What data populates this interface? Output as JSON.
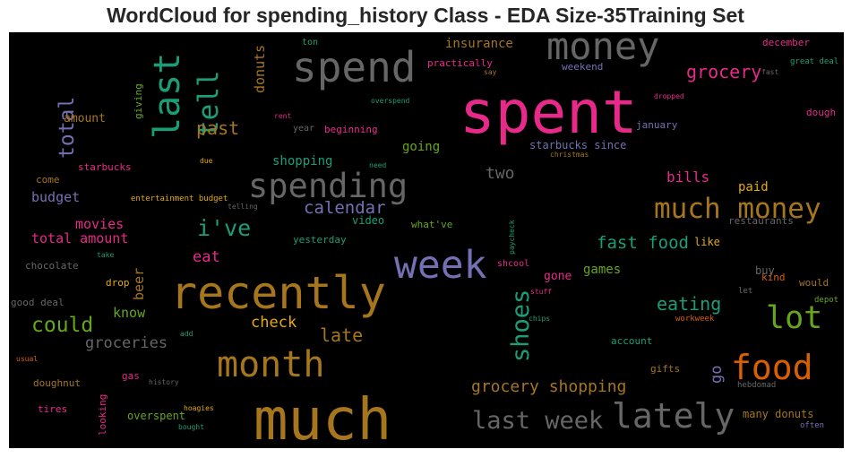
{
  "chart_data": {
    "type": "wordcloud",
    "title": "WordCloud for spending_history Class - EDA Size-35Training Set",
    "background": "#000000",
    "words": [
      {
        "text": "spent",
        "size": 66,
        "color": "#e7298a"
      },
      {
        "text": "much",
        "size": 64,
        "color": "#a6761d"
      },
      {
        "text": "recently",
        "size": 50,
        "color": "#a6761d"
      },
      {
        "text": "spend",
        "size": 46,
        "color": "#666666"
      },
      {
        "text": "week",
        "size": 43,
        "color": "#7570b3"
      },
      {
        "text": "money",
        "size": 42,
        "color": "#666666"
      },
      {
        "text": "last",
        "size": 40,
        "color": "#1b9e77"
      },
      {
        "text": "month",
        "size": 40,
        "color": "#a6761d"
      },
      {
        "text": "lately",
        "size": 38,
        "color": "#666666"
      },
      {
        "text": "food",
        "size": 38,
        "color": "#d95f02"
      },
      {
        "text": "spending",
        "size": 37,
        "color": "#666666"
      },
      {
        "text": "lot",
        "size": 35,
        "color": "#66a61e"
      },
      {
        "text": "much money",
        "size": 31,
        "color": "#a6761d"
      },
      {
        "text": "tell",
        "size": 31,
        "color": "#1b9e77"
      },
      {
        "text": "shoes",
        "size": 27,
        "color": "#1b9e77"
      },
      {
        "text": "last week",
        "size": 27,
        "color": "#666666"
      },
      {
        "text": "i've",
        "size": 25,
        "color": "#1b9e77"
      },
      {
        "text": "could",
        "size": 23,
        "color": "#66a61e"
      },
      {
        "text": "total",
        "size": 23,
        "color": "#7570b3"
      },
      {
        "text": "past",
        "size": 20,
        "color": "#a6761d"
      },
      {
        "text": "grocery",
        "size": 20,
        "color": "#e7298a"
      },
      {
        "text": "late",
        "size": 20,
        "color": "#a6761d"
      },
      {
        "text": "eating",
        "size": 20,
        "color": "#1b9e77"
      },
      {
        "text": "calendar",
        "size": 19,
        "color": "#7570b3"
      },
      {
        "text": "fast food",
        "size": 19,
        "color": "#1b9e77"
      },
      {
        "text": "grocery shopping",
        "size": 18,
        "color": "#a6761d"
      },
      {
        "text": "two",
        "size": 18,
        "color": "#666666"
      },
      {
        "text": "groceries",
        "size": 17,
        "color": "#666666"
      },
      {
        "text": "eat",
        "size": 17,
        "color": "#e7298a"
      },
      {
        "text": "check",
        "size": 17,
        "color": "#e6ab02"
      },
      {
        "text": "go",
        "size": 17,
        "color": "#7570b3"
      },
      {
        "text": "bills",
        "size": 16,
        "color": "#e7298a"
      },
      {
        "text": "donuts",
        "size": 15,
        "color": "#a6761d"
      },
      {
        "text": "budget",
        "size": 15,
        "color": "#7570b3"
      },
      {
        "text": "movies",
        "size": 15,
        "color": "#e7298a"
      },
      {
        "text": "total amount",
        "size": 15,
        "color": "#e7298a"
      },
      {
        "text": "know",
        "size": 15,
        "color": "#66a61e"
      },
      {
        "text": "beer",
        "size": 15,
        "color": "#a6761d"
      },
      {
        "text": "games",
        "size": 14,
        "color": "#66a61e"
      },
      {
        "text": "insurance",
        "size": 14,
        "color": "#a6761d"
      },
      {
        "text": "going",
        "size": 14,
        "color": "#66a61e"
      },
      {
        "text": "shopping",
        "size": 14,
        "color": "#1b9e77"
      },
      {
        "text": "paid",
        "size": 14,
        "color": "#e6ab02"
      },
      {
        "text": "gone",
        "size": 13,
        "color": "#e7298a"
      },
      {
        "text": "amount",
        "size": 13,
        "color": "#a6761d"
      },
      {
        "text": "starbucks since",
        "size": 12,
        "color": "#7570b3"
      },
      {
        "text": "video",
        "size": 12,
        "color": "#1b9e77"
      },
      {
        "text": "like",
        "size": 12,
        "color": "#e6ab02"
      },
      {
        "text": "buy",
        "size": 12,
        "color": "#666666"
      },
      {
        "text": "overspent",
        "size": 12,
        "color": "#66a61e"
      },
      {
        "text": "many donuts",
        "size": 12,
        "color": "#a6761d"
      },
      {
        "text": "practically",
        "size": 11,
        "color": "#e7298a"
      },
      {
        "text": "starbucks",
        "size": 11,
        "color": "#e7298a"
      },
      {
        "text": "beginning",
        "size": 11,
        "color": "#e7298a"
      },
      {
        "text": "restaurants",
        "size": 11,
        "color": "#666666"
      },
      {
        "text": "kind",
        "size": 11,
        "color": "#d95f02"
      },
      {
        "text": "would",
        "size": 11,
        "color": "#a6761d"
      },
      {
        "text": "chocolate",
        "size": 11,
        "color": "#666666"
      },
      {
        "text": "good deal",
        "size": 11,
        "color": "#666666"
      },
      {
        "text": "doughnut",
        "size": 11,
        "color": "#a6761d"
      },
      {
        "text": "gas",
        "size": 11,
        "color": "#e7298a"
      },
      {
        "text": "tires",
        "size": 11,
        "color": "#e7298a"
      },
      {
        "text": "account",
        "size": 11,
        "color": "#1b9e77"
      },
      {
        "text": "gifts",
        "size": 11,
        "color": "#a6761d"
      },
      {
        "text": "dough",
        "size": 11,
        "color": "#e7298a"
      },
      {
        "text": "january",
        "size": 11,
        "color": "#7570b3"
      },
      {
        "text": "weekend",
        "size": 11,
        "color": "#7570b3"
      },
      {
        "text": "december",
        "size": 11,
        "color": "#e7298a"
      },
      {
        "text": "what've",
        "size": 11,
        "color": "#66a61e"
      },
      {
        "text": "yesterday",
        "size": 11,
        "color": "#1b9e77"
      },
      {
        "text": "drop",
        "size": 11,
        "color": "#e6ab02"
      },
      {
        "text": "come",
        "size": 11,
        "color": "#a6761d"
      },
      {
        "text": "looking",
        "size": 11,
        "color": "#e7298a"
      },
      {
        "text": "giving",
        "size": 11,
        "color": "#66a61e"
      },
      {
        "text": "ton",
        "size": 10,
        "color": "#1b9e77"
      },
      {
        "text": "year",
        "size": 10,
        "color": "#666666"
      },
      {
        "text": "shcool",
        "size": 10,
        "color": "#e7298a"
      },
      {
        "text": "often",
        "size": 9,
        "color": "#7570b3"
      },
      {
        "text": "entertainment budget",
        "size": 9,
        "color": "#e6ab02"
      },
      {
        "text": "great deal",
        "size": 9,
        "color": "#1b9e77"
      },
      {
        "text": "hebdomad",
        "size": 9,
        "color": "#666666"
      },
      {
        "text": "workweek",
        "size": 9,
        "color": "#d95f02"
      },
      {
        "text": "depot",
        "size": 9,
        "color": "#66a61e"
      },
      {
        "text": "let",
        "size": 9,
        "color": "#666666"
      },
      {
        "text": "paycheck",
        "size": 8,
        "color": "#1b9e77"
      },
      {
        "text": "chips",
        "size": 8,
        "color": "#1b9e77"
      },
      {
        "text": "stuff",
        "size": 8,
        "color": "#e7298a"
      },
      {
        "text": "christmas",
        "size": 8,
        "color": "#a6761d"
      },
      {
        "text": "need",
        "size": 8,
        "color": "#1b9e77"
      },
      {
        "text": "due",
        "size": 8,
        "color": "#e6ab02"
      },
      {
        "text": "rent",
        "size": 8,
        "color": "#e7298a"
      },
      {
        "text": "overspend",
        "size": 8,
        "color": "#1b9e77"
      },
      {
        "text": "dropped",
        "size": 8,
        "color": "#e7298a"
      },
      {
        "text": "say",
        "size": 8,
        "color": "#a6761d"
      },
      {
        "text": "fast",
        "size": 8,
        "color": "#666666"
      },
      {
        "text": "telling",
        "size": 8,
        "color": "#666666"
      },
      {
        "text": "take",
        "size": 8,
        "color": "#1b9e77"
      },
      {
        "text": "add",
        "size": 8,
        "color": "#1b9e77"
      },
      {
        "text": "usual",
        "size": 8,
        "color": "#d95f02"
      },
      {
        "text": "history",
        "size": 8,
        "color": "#666666"
      },
      {
        "text": "hoagies",
        "size": 8,
        "color": "#e6ab02"
      },
      {
        "text": "bought",
        "size": 8,
        "color": "#1b9e77"
      }
    ]
  }
}
